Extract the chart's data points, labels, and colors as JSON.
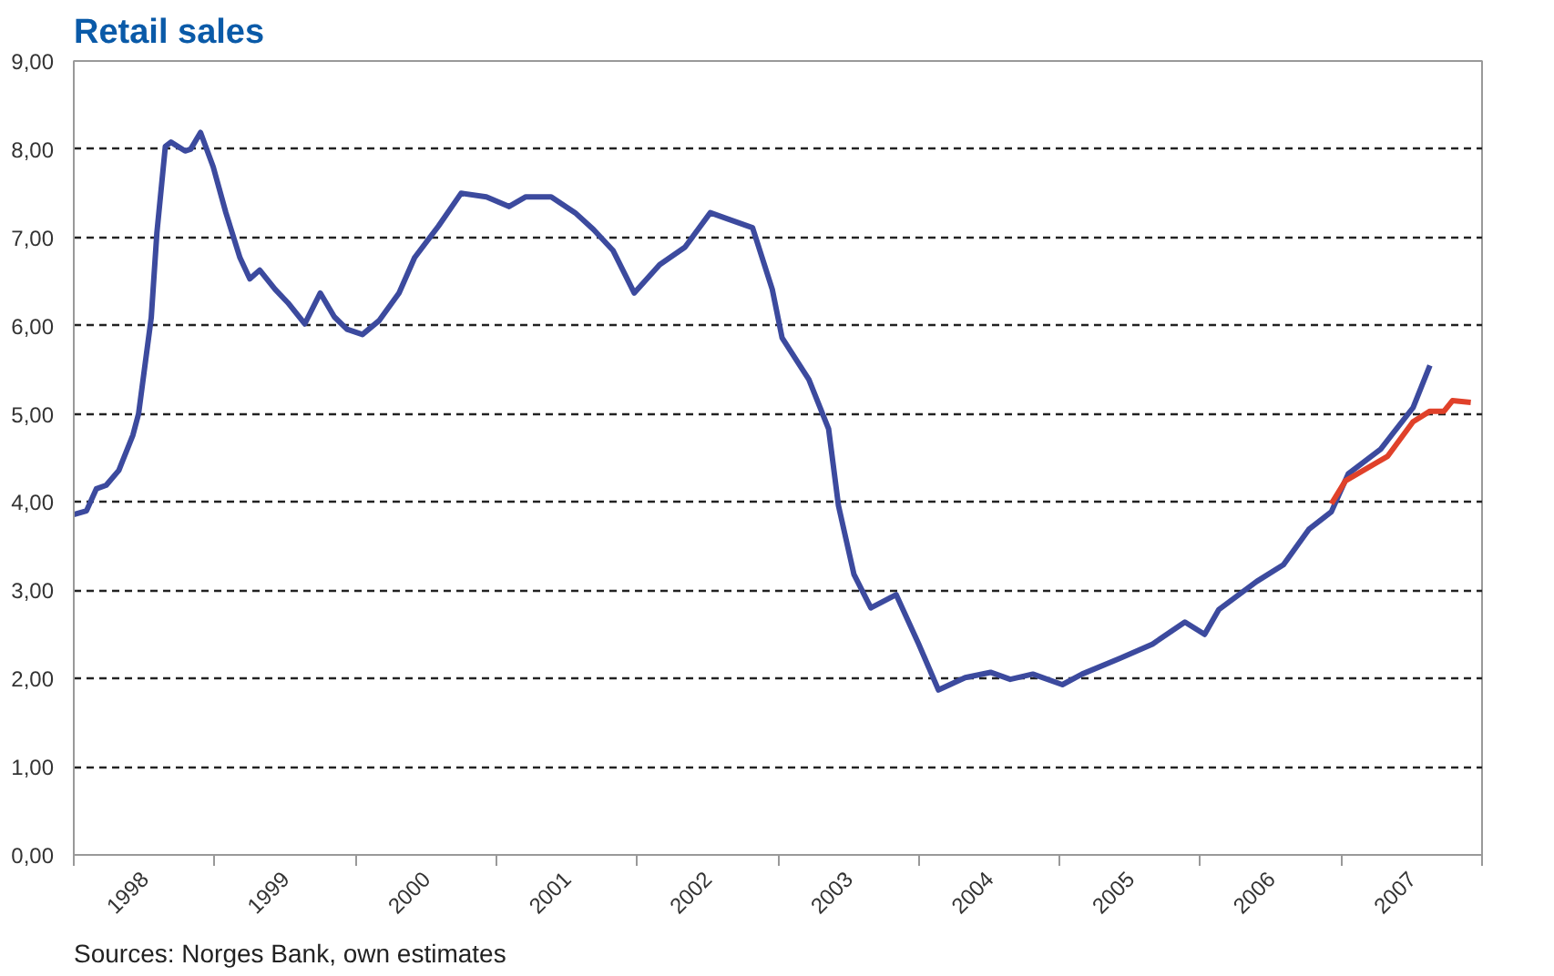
{
  "chart_data": {
    "type": "line",
    "title": "Retail sales",
    "annotations": [
      "Sources: Norges Bank, own estimates"
    ],
    "xlim": [
      1998,
      2008
    ],
    "xticks": [
      {
        "value": 1998.5,
        "label": "1998"
      },
      {
        "value": 1999.5,
        "label": "1999"
      },
      {
        "value": 2000.5,
        "label": "2000"
      },
      {
        "value": 2001.5,
        "label": "2001"
      },
      {
        "value": 2002.5,
        "label": "2002"
      },
      {
        "value": 2003.5,
        "label": "2003"
      },
      {
        "value": 2004.5,
        "label": "2004"
      },
      {
        "value": 2005.5,
        "label": "2005"
      },
      {
        "value": 2006.5,
        "label": "2006"
      },
      {
        "value": 2007.5,
        "label": "2007"
      }
    ],
    "ylim": [
      0,
      9
    ],
    "yticks": [
      {
        "value": 0,
        "label": "0,00"
      },
      {
        "value": 1,
        "label": "1,00"
      },
      {
        "value": 2,
        "label": "2,00"
      },
      {
        "value": 3,
        "label": "3,00"
      },
      {
        "value": 4,
        "label": "4,00"
      },
      {
        "value": 5,
        "label": "5,00"
      },
      {
        "value": 6,
        "label": "6,00"
      },
      {
        "value": 7,
        "label": "7,00"
      },
      {
        "value": 8,
        "label": "8,00"
      },
      {
        "value": 9,
        "label": "9,00"
      }
    ],
    "grid": "y",
    "line_style": "solid",
    "series": [
      {
        "color": "#3c4a9e",
        "x": [
          1998.0,
          1998.09,
          1998.16,
          1998.23,
          1998.32,
          1998.42,
          1998.46,
          1998.55,
          1998.59,
          1998.65,
          1998.69,
          1998.79,
          1998.83,
          1998.9,
          1998.99,
          1999.08,
          1999.18,
          1999.25,
          1999.32,
          1999.43,
          1999.52,
          1999.64,
          1999.75,
          1999.85,
          1999.94,
          2000.05,
          2000.17,
          2000.31,
          2000.42,
          2000.59,
          2000.75,
          2000.93,
          2001.09,
          2001.21,
          2001.39,
          2001.56,
          2001.69,
          2001.83,
          2001.98,
          2002.16,
          2002.34,
          2002.52,
          2002.66,
          2002.82,
          2002.96,
          2003.03,
          2003.22,
          2003.36,
          2003.43,
          2003.54,
          2003.66,
          2003.84,
          2004.0,
          2004.14,
          2004.33,
          2004.51,
          2004.65,
          2004.81,
          2005.02,
          2005.16,
          2005.43,
          2005.66,
          2005.89,
          2006.03,
          2006.13,
          2006.4,
          2006.59,
          2006.77,
          2006.93,
          2007.05,
          2007.28,
          2007.51,
          2007.63
        ],
        "values": [
          3.86,
          3.9,
          4.15,
          4.19,
          4.36,
          4.76,
          5.0,
          6.09,
          7.05,
          8.03,
          8.08,
          7.98,
          8.0,
          8.19,
          7.8,
          7.28,
          6.77,
          6.53,
          6.63,
          6.41,
          6.26,
          6.02,
          6.37,
          6.1,
          5.96,
          5.9,
          6.06,
          6.37,
          6.77,
          7.13,
          7.5,
          7.46,
          7.35,
          7.46,
          7.46,
          7.28,
          7.09,
          6.85,
          6.37,
          6.69,
          6.89,
          7.28,
          7.2,
          7.11,
          6.41,
          5.86,
          5.39,
          4.83,
          3.96,
          3.18,
          2.8,
          2.95,
          2.39,
          1.87,
          2.01,
          2.07,
          1.99,
          2.05,
          1.93,
          2.05,
          2.23,
          2.39,
          2.64,
          2.5,
          2.78,
          3.1,
          3.29,
          3.69,
          3.89,
          4.32,
          4.6,
          5.07,
          5.55
        ]
      },
      {
        "color": "#e0412a",
        "x": [
          2006.93,
          2007.03,
          2007.33,
          2007.51,
          2007.63,
          2007.73,
          2007.79,
          2007.92
        ],
        "values": [
          3.98,
          4.24,
          4.52,
          4.91,
          5.03,
          5.03,
          5.15,
          5.13
        ]
      }
    ]
  }
}
